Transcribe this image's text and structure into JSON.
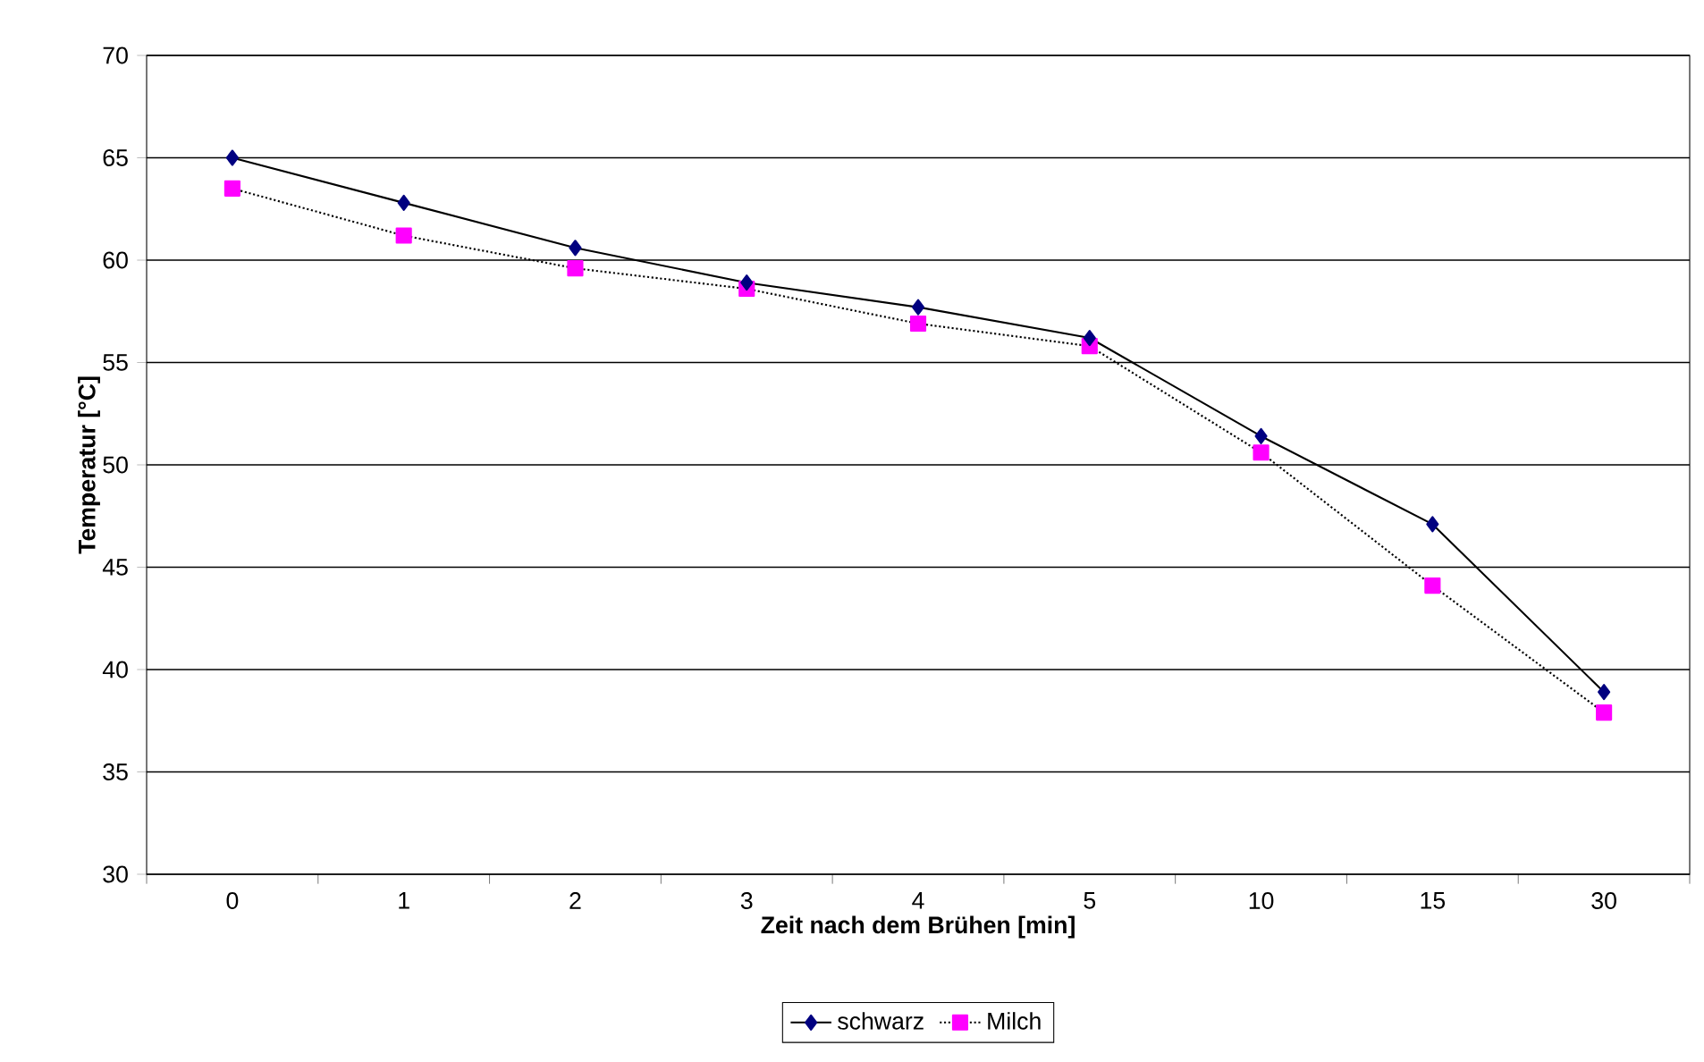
{
  "chart_data": {
    "type": "line",
    "xlabel": "Zeit nach dem Brühen [min]",
    "ylabel": "Temperatur [°C]",
    "categories": [
      "0",
      "1",
      "2",
      "3",
      "4",
      "5",
      "10",
      "15",
      "30"
    ],
    "series": [
      {
        "name": "schwarz",
        "color": "#000080",
        "marker": "diamond",
        "line_style": "solid",
        "values": [
          65.0,
          62.8,
          60.6,
          58.9,
          57.7,
          56.2,
          51.4,
          47.1,
          38.9
        ]
      },
      {
        "name": "Milch",
        "color": "#ff00ff",
        "marker": "square",
        "line_style": "dotted",
        "values": [
          63.5,
          61.2,
          59.6,
          58.6,
          56.9,
          55.8,
          50.6,
          44.1,
          37.9
        ]
      }
    ],
    "ylim": [
      30,
      70
    ],
    "yticks": [
      30,
      35,
      40,
      45,
      50,
      55,
      60,
      65,
      70
    ],
    "grid": "y",
    "legend": "bottom"
  }
}
